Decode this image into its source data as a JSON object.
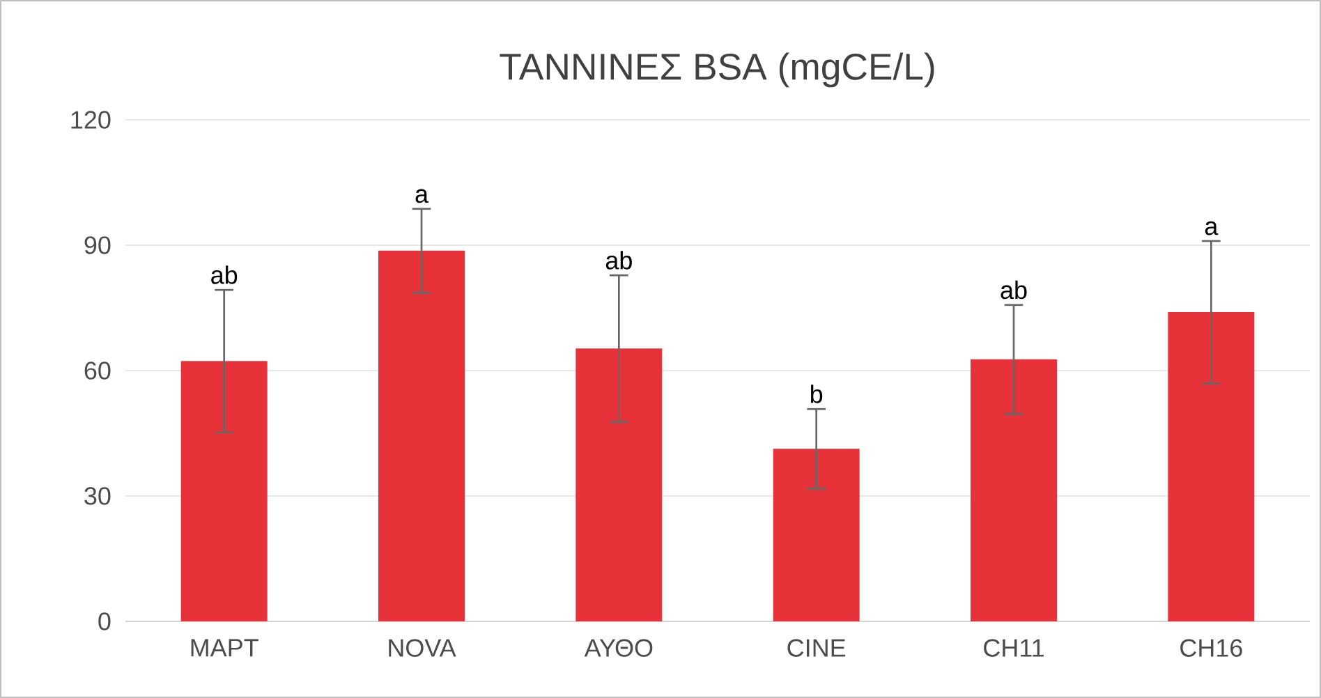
{
  "chart_data": {
    "type": "bar",
    "title": "ΤΑΝΝΙΝΕΣ BSA (mgCE/L)",
    "categories": [
      "ΜΑΡΤ",
      "NOVA",
      "ΑΥΘΟ",
      "CINE",
      "CH11",
      "CH16"
    ],
    "values": [
      62.3,
      88.7,
      65.3,
      41.3,
      62.7,
      74
    ],
    "errors": [
      17,
      10,
      17.5,
      9.5,
      13,
      17
    ],
    "color": "#e8323a",
    "ylim": [
      0,
      120
    ],
    "yticks": [
      0,
      30,
      60,
      90,
      120
    ],
    "grid": "y",
    "annotations": [
      {
        "text": "ab",
        "x": "ΜΑΡΤ",
        "y": 79.3
      },
      {
        "text": "a",
        "x": "NOVA",
        "y": 98.7
      },
      {
        "text": "ab",
        "x": "ΑΥΘΟ",
        "y": 82.8
      },
      {
        "text": "b",
        "x": "CINE",
        "y": 50.8
      },
      {
        "text": "ab",
        "x": "CH11",
        "y": 75.7
      },
      {
        "text": "a",
        "x": "CH16",
        "y": 91
      }
    ]
  }
}
